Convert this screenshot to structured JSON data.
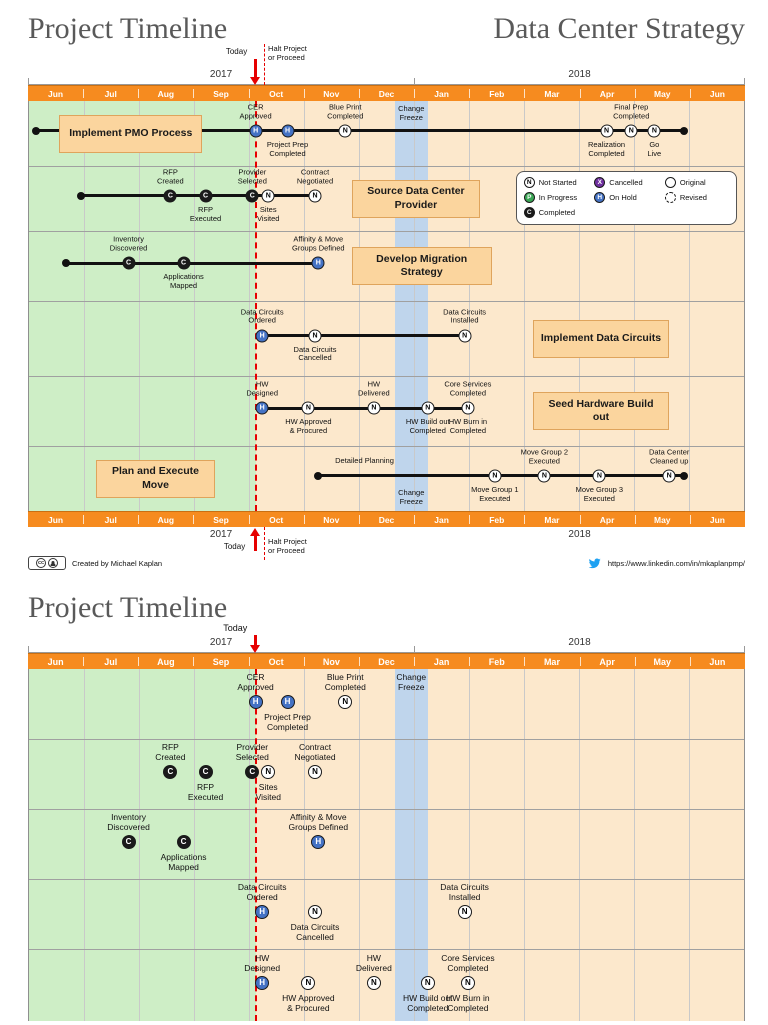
{
  "shared": {
    "months": [
      "Jun",
      "Jul",
      "Aug",
      "Sep",
      "Oct",
      "Nov",
      "Dec",
      "Jan",
      "Feb",
      "Mar",
      "Apr",
      "May",
      "Jun"
    ],
    "years": [
      {
        "label": "2017",
        "start": 0,
        "end": 7
      },
      {
        "label": "2018",
        "start": 7,
        "end": 13
      }
    ],
    "today_label": "Today",
    "halt_label": "Halt Project\nor Proceed",
    "freeze_label": "Change\nFreeze",
    "colors": {
      "bar_orange": "#F68B1F",
      "past_green": "#CEEEC6",
      "future_tan": "#FCE8CC",
      "freeze_blue": "#BFD5EC",
      "stage_box": "#FBD59E",
      "today_red": "#E60000",
      "status_not_started": "#FFFFFF",
      "status_in_progress": "#3AA655",
      "status_completed": "#1A1A1A",
      "status_cancelled": "#7030A0",
      "status_on_hold": "#4472C4",
      "title_gray": "#595959",
      "twitter_blue": "#1DA1F2"
    }
  },
  "legend": {
    "statuses": [
      {
        "letter": "N",
        "label": "Not Started",
        "fill": "#FFFFFF",
        "text": "#000000"
      },
      {
        "letter": "P",
        "label": "In Progress",
        "fill": "#3AA655",
        "text": "#FFFFFF"
      },
      {
        "letter": "C",
        "label": "Completed",
        "fill": "#1A1A1A",
        "text": "#FFFFFF"
      },
      {
        "letter": "X",
        "label": "Cancelled",
        "fill": "#7030A0",
        "text": "#FFFFFF"
      },
      {
        "letter": "H",
        "label": "On Hold",
        "fill": "#4472C4",
        "text": "#FFFFFF"
      }
    ],
    "shapes": [
      {
        "label": "Original",
        "style": "solid"
      },
      {
        "label": "Revised",
        "style": "dashed"
      }
    ]
  },
  "slide1": {
    "title": "Project Timeline",
    "subtitle": "Data Center Strategy",
    "today_m": 4.12,
    "freeze_band": [
      6.65,
      7.25
    ],
    "lanes": [
      {
        "stage": "Implement PMO Process",
        "stage_box_m": [
          0.55,
          3.15
        ],
        "line": {
          "from": 0.13,
          "to": 11.9,
          "dot_start": true,
          "dot_end": true
        },
        "milestones": [
          {
            "label": "CER\nApproved",
            "status": "H",
            "m": 4.12,
            "pos": "above"
          },
          {
            "label": "Project Prep\nCompleted",
            "status": "H",
            "m": 4.7,
            "pos": "below"
          },
          {
            "label": "Blue Print\nCompleted",
            "status": "N",
            "m": 5.75,
            "pos": "above"
          },
          {
            "label": "Realization\nCompleted",
            "status": "N",
            "m": 10.5,
            "pos": "below"
          },
          {
            "label": "Final Prep\nCompleted",
            "status": "N",
            "m": 10.95,
            "pos": "above"
          },
          {
            "label": "Go\nLive",
            "status": "N",
            "m": 11.37,
            "pos": "below"
          }
        ]
      },
      {
        "stage": "Source Data Center Provider",
        "stage_box_m": [
          5.87,
          8.2
        ],
        "line": {
          "from": 0.94,
          "to": 5.2,
          "dot_start": true,
          "dot_end": false
        },
        "milestones": [
          {
            "label": "RFP\nCreated",
            "status": "C",
            "m": 2.57,
            "pos": "above"
          },
          {
            "label": "RFP\nExecuted",
            "status": "C",
            "m": 3.21,
            "pos": "below"
          },
          {
            "label": "Provider\nSelected",
            "status": "C",
            "m": 4.06,
            "pos": "above"
          },
          {
            "label": "Sites\nVisited",
            "status": "N",
            "m": 4.35,
            "pos": "below"
          },
          {
            "label": "Contract\nNegotiated",
            "status": "N",
            "m": 5.2,
            "pos": "above"
          }
        ]
      },
      {
        "stage": "Develop Migration Strategy",
        "stage_box_m": [
          5.87,
          8.41
        ],
        "line": {
          "from": 0.67,
          "to": 5.26,
          "dot_start": true,
          "dot_end": false
        },
        "milestones": [
          {
            "label": "Inventory\nDiscovered",
            "status": "C",
            "m": 1.81,
            "pos": "above"
          },
          {
            "label": "Applications\nMapped",
            "status": "C",
            "m": 2.81,
            "pos": "below"
          },
          {
            "label": "Affinity & Move\nGroups Defined",
            "status": "H",
            "m": 5.26,
            "pos": "above"
          }
        ]
      },
      {
        "stage": "Implement Data Circuits",
        "stage_box_m": [
          9.16,
          11.64
        ],
        "line": {
          "from": 4.24,
          "to": 7.92,
          "dot_start": false,
          "dot_end": false
        },
        "milestones": [
          {
            "label": "Data Circuits\nOrdered",
            "status": "H",
            "m": 4.24,
            "pos": "above"
          },
          {
            "label": "Data Circuits\nCancelled",
            "status": "N",
            "m": 5.2,
            "pos": "below"
          },
          {
            "label": "Data Circuits\nInstalled",
            "status": "N",
            "m": 7.92,
            "pos": "above"
          }
        ]
      },
      {
        "stage": "Seed Hardware Build out",
        "stage_box_m": [
          9.16,
          11.64
        ],
        "line": {
          "from": 4.24,
          "to": 7.98,
          "dot_start": false,
          "dot_end": false
        },
        "milestones": [
          {
            "label": "HW\nDesigned",
            "status": "H",
            "m": 4.24,
            "pos": "above"
          },
          {
            "label": "HW Approved\n& Procured",
            "status": "N",
            "m": 5.08,
            "pos": "below"
          },
          {
            "label": "HW\nDelivered",
            "status": "N",
            "m": 6.27,
            "pos": "above"
          },
          {
            "label": "HW Build out\nCompleted",
            "status": "N",
            "m": 7.25,
            "pos": "below"
          },
          {
            "label": "Core Services\nCompleted",
            "status": "N",
            "m": 7.98,
            "pos": "above"
          },
          {
            "label": "HW Burn in\nCompleted",
            "status": "N",
            "m": 7.98,
            "pos": "below",
            "no_marker": true
          }
        ]
      },
      {
        "stage": "Plan and Execute Move",
        "stage_box_m": [
          1.21,
          3.39
        ],
        "line": {
          "from": 5.26,
          "to": 11.9,
          "dot_start": true,
          "dot_end": true
        },
        "milestones": [
          {
            "label": "Detailed Planning",
            "status": "",
            "m": 6.1,
            "pos": "above",
            "no_marker": true
          },
          {
            "label": "Move Group 1\nExecuted",
            "status": "N",
            "m": 8.47,
            "pos": "below"
          },
          {
            "label": "Move Group 2\nExecuted",
            "status": "N",
            "m": 9.37,
            "pos": "above"
          },
          {
            "label": "Move Group 3\nExecuted",
            "status": "N",
            "m": 10.37,
            "pos": "below"
          },
          {
            "label": "Data Center\nCleaned up",
            "status": "N",
            "m": 11.64,
            "pos": "above"
          }
        ]
      }
    ],
    "footer": {
      "cc": "cc",
      "license_text": "Created by Michael Kaplan",
      "link_text": "https://www.linkedin.com/in/mkaplanpmp/"
    }
  },
  "slide2": {
    "title": "Project Timeline",
    "today_m": 4.12,
    "freeze_band": [
      6.65,
      7.25
    ],
    "lanes": [
      {
        "milestones": [
          {
            "label": "CER\nApproved",
            "status": "H",
            "m": 4.12,
            "pos": "above"
          },
          {
            "label": "Project Prep\nCompleted",
            "status": "H",
            "m": 4.7,
            "pos": "below"
          },
          {
            "label": "Blue Print\nCompleted",
            "status": "N",
            "m": 5.75,
            "pos": "above"
          }
        ]
      },
      {
        "milestones": [
          {
            "label": "RFP\nCreated",
            "status": "C",
            "m": 2.57,
            "pos": "above"
          },
          {
            "label": "RFP\nExecuted",
            "status": "C",
            "m": 3.21,
            "pos": "below"
          },
          {
            "label": "Provider\nSelected",
            "status": "C",
            "m": 4.06,
            "pos": "above"
          },
          {
            "label": "Sites\nVisited",
            "status": "N",
            "m": 4.35,
            "pos": "below"
          },
          {
            "label": "Contract\nNegotiated",
            "status": "N",
            "m": 5.2,
            "pos": "above"
          }
        ]
      },
      {
        "milestones": [
          {
            "label": "Inventory\nDiscovered",
            "status": "C",
            "m": 1.81,
            "pos": "above"
          },
          {
            "label": "Applications\nMapped",
            "status": "C",
            "m": 2.81,
            "pos": "below"
          },
          {
            "label": "Affinity & Move\nGroups Defined",
            "status": "H",
            "m": 5.26,
            "pos": "above"
          }
        ]
      },
      {
        "milestones": [
          {
            "label": "Data Circuits\nOrdered",
            "status": "H",
            "m": 4.24,
            "pos": "above"
          },
          {
            "label": "Data Circuits\nCancelled",
            "status": "N",
            "m": 5.2,
            "pos": "below"
          },
          {
            "label": "Data Circuits\nInstalled",
            "status": "N",
            "m": 7.92,
            "pos": "above"
          }
        ]
      },
      {
        "milestones": [
          {
            "label": "HW\nDesigned",
            "status": "H",
            "m": 4.24,
            "pos": "above"
          },
          {
            "label": "HW Approved\n& Procured",
            "status": "N",
            "m": 5.08,
            "pos": "below"
          },
          {
            "label": "HW\nDelivered",
            "status": "N",
            "m": 6.27,
            "pos": "above"
          },
          {
            "label": "HW Build out\nCompleted",
            "status": "N",
            "m": 7.25,
            "pos": "below"
          },
          {
            "label": "Core Services\nCompleted",
            "status": "N",
            "m": 7.98,
            "pos": "above"
          },
          {
            "label": "HW Burn in\nCompleted",
            "status": "N",
            "m": 7.98,
            "pos": "below",
            "no_marker": true
          }
        ]
      }
    ]
  }
}
